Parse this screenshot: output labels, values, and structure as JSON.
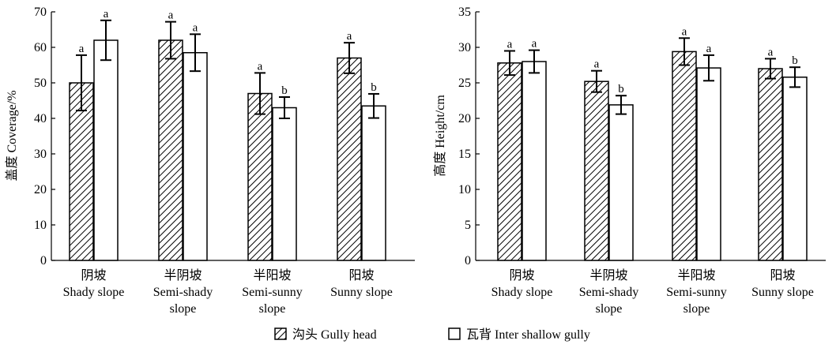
{
  "chart_data": [
    {
      "type": "bar",
      "categories": [
        [
          "阴坡",
          "Shady slope"
        ],
        [
          "半阴坡",
          "Semi-shady",
          "slope"
        ],
        [
          "半阳坡",
          "Semi-sunny",
          "slope"
        ],
        [
          "阳坡",
          "Sunny slope"
        ]
      ],
      "ylabel": "盖度 Coverage/%",
      "ylim": [
        0,
        70
      ],
      "yticks": [
        0,
        10,
        20,
        30,
        40,
        50,
        60,
        70
      ],
      "series": [
        {
          "name": "沟头 Gully head",
          "values": [
            50,
            62,
            47,
            57
          ],
          "errors": [
            7.8,
            5.2,
            5.8,
            4.3
          ],
          "letters": [
            "a",
            "a",
            "a",
            "a"
          ]
        },
        {
          "name": "瓦背 Inter shallow gully",
          "values": [
            62,
            58.5,
            43,
            43.5
          ],
          "errors": [
            5.6,
            5.2,
            3.0,
            3.4
          ],
          "letters": [
            "a",
            "a",
            "b",
            "b"
          ]
        }
      ],
      "grid": false
    },
    {
      "type": "bar",
      "categories": [
        [
          "阴坡",
          "Shady slope"
        ],
        [
          "半阴坡",
          "Semi-shady",
          "slope"
        ],
        [
          "半阳坡",
          "Semi-sunny",
          "slope"
        ],
        [
          "阳坡",
          "Sunny slope"
        ]
      ],
      "ylabel": "高度 Height/cm",
      "ylim": [
        0,
        35
      ],
      "yticks": [
        0,
        5,
        10,
        15,
        20,
        25,
        30,
        35
      ],
      "series": [
        {
          "name": "沟头 Gully head",
          "values": [
            27.8,
            25.2,
            29.4,
            27
          ],
          "errors": [
            1.7,
            1.5,
            1.9,
            1.4
          ],
          "letters": [
            "a",
            "a",
            "a",
            "a"
          ]
        },
        {
          "name": "瓦背 Inter shallow gully",
          "values": [
            28,
            21.9,
            27.1,
            25.8
          ],
          "errors": [
            1.6,
            1.3,
            1.8,
            1.4
          ],
          "letters": [
            "a",
            "b",
            "a",
            "b"
          ]
        }
      ],
      "grid": false
    }
  ],
  "legend": {
    "placement": "bottom",
    "items": [
      {
        "label": "沟头 Gully head",
        "pattern": "hatched"
      },
      {
        "label": "瓦背 Inter shallow gully",
        "pattern": "open"
      }
    ]
  }
}
